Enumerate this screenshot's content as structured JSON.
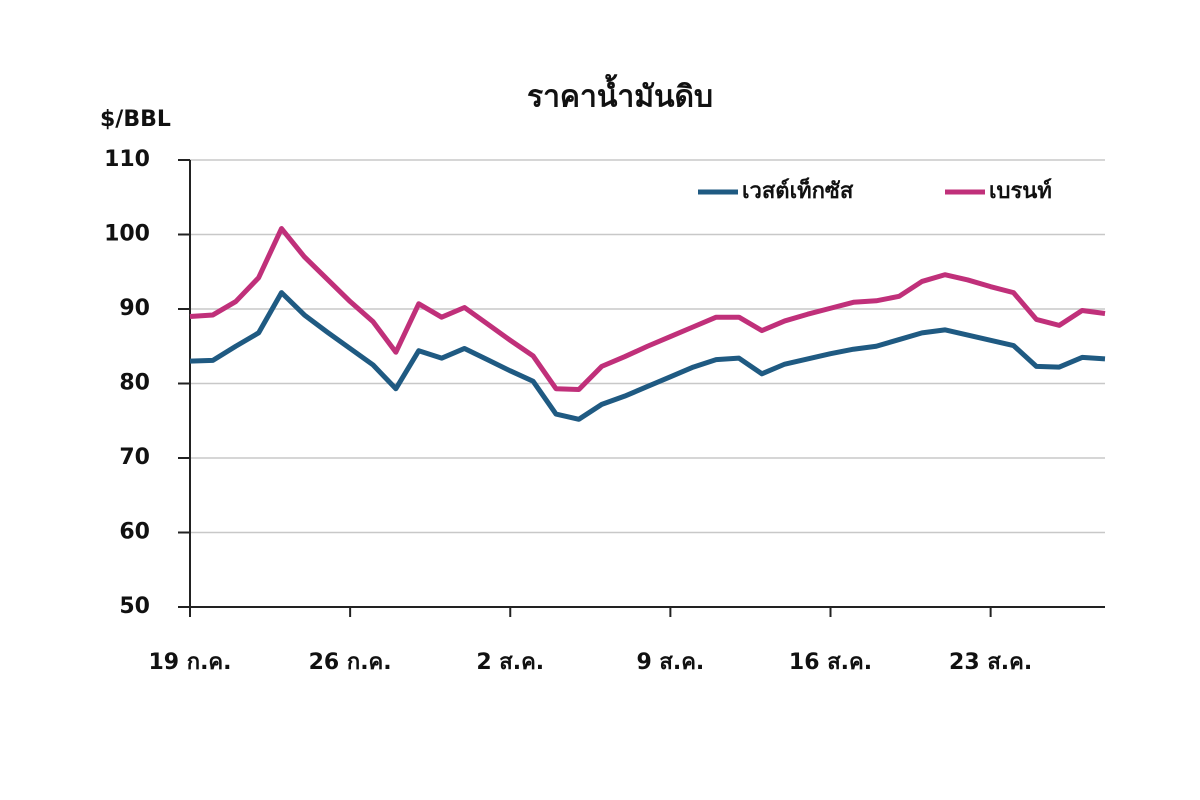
{
  "chart_data": {
    "type": "line",
    "title": "ราคาน้ำมันดิบ",
    "y_label": "$/BBL",
    "categories": [
      "19 ก.ค.",
      null,
      null,
      null,
      null,
      null,
      null,
      "26 ก.ค.",
      null,
      null,
      null,
      null,
      null,
      null,
      "2 ส.ค.",
      null,
      null,
      null,
      null,
      null,
      null,
      "9 ส.ค.",
      null,
      null,
      null,
      null,
      null,
      null,
      "16 ส.ค.",
      null,
      null,
      null,
      null,
      null,
      null,
      "23 ส.ค.",
      null,
      null,
      null,
      null,
      null
    ],
    "series": [
      {
        "name": "เวสต์เท็กซัส",
        "color": "#1f5a82",
        "values": [
          83,
          83.1,
          85,
          86.8,
          92.2,
          89.2,
          86.9,
          84.7,
          82.5,
          79.3,
          84.4,
          83.4,
          84.7,
          83.2,
          81.7,
          80.3,
          75.9,
          75.2,
          77.2,
          78.3,
          79.6,
          80.9,
          82.2,
          83.2,
          83.4,
          81.3,
          82.6,
          83.3,
          84,
          84.6,
          85,
          85.9,
          86.8,
          87.2,
          86.5,
          85.8,
          85.1,
          82.3,
          82.2,
          83.5,
          83.3
        ]
      },
      {
        "name": "เบรนท์",
        "color": "#c0307a",
        "values": [
          89,
          89.2,
          91,
          94.2,
          100.8,
          97,
          94,
          91,
          88.3,
          84.2,
          90.7,
          88.9,
          90.2,
          88,
          85.8,
          83.7,
          79.3,
          79.2,
          82.3,
          83.6,
          85,
          86.3,
          87.6,
          88.9,
          88.9,
          87.1,
          88.4,
          89.3,
          90.1,
          90.9,
          91.1,
          91.7,
          93.7,
          94.6,
          93.9,
          93,
          92.2,
          88.6,
          87.8,
          89.8,
          89.4
        ]
      }
    ],
    "ylim": [
      50,
      110
    ],
    "yticks": [
      50,
      60,
      70,
      80,
      90,
      100,
      110
    ],
    "grid": true,
    "legend": "top-right"
  }
}
